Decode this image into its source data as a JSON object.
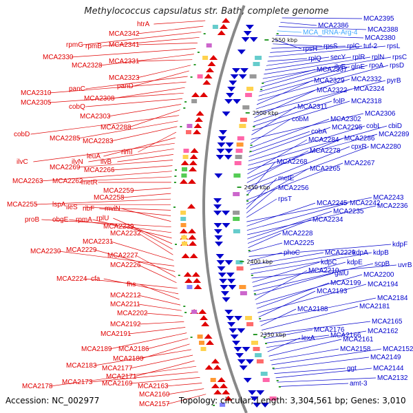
{
  "title": "Methylococcus capsulatus str. Bath, complete genome",
  "footer": {
    "accession": "Accession: NC_002977",
    "summary": "Topology: circular; Length: 3,304,561 bp; Genes: 3,010"
  },
  "colors": {
    "forward": "#e00000",
    "reverse": "#0000cc",
    "trna": "#3fa7ff",
    "backbone": "#888888"
  },
  "kbp_marks": [
    "2550 kbp",
    "2500 kbp",
    "2450 kbp",
    "2400 kbp",
    "2350 kbp"
  ],
  "left_labels": [
    "htrA",
    "MCA2342",
    "rpmG",
    "rpmB",
    "MCA2341",
    "MCA2330",
    "MCA2328",
    "MCA2331",
    "MCA2323",
    "panD",
    "panC",
    "MCA2310",
    "MCA2308",
    "MCA2305",
    "cobQ",
    "MCA2303",
    "MCA2288",
    "cobD",
    "MCA2285",
    "MCA2283",
    "rimI",
    "leuA",
    "ilvC",
    "ilvN",
    "ilvB",
    "MCA2269",
    "MCA2266",
    "MCA2263",
    "MCA2262",
    "metR",
    "MCA2259",
    "MCA2258",
    "MCA2255",
    "lspA",
    "ileS",
    "ribF",
    "mviN",
    "proB",
    "obgE",
    "rpmA",
    "rplU",
    "MCA2239",
    "MCA2232",
    "MCA2231",
    "MCA2230",
    "MCA2229",
    "MCA2227",
    "MCA2226",
    "MCA2224",
    "cfa",
    "fhs",
    "MCA2212",
    "MCA2211",
    "MCA2202",
    "MCA2192",
    "MCA2191",
    "MCA2189",
    "MCA2186",
    "MCA2180",
    "MCA2183",
    "MCA2177",
    "MCA2171",
    "MCA2178",
    "MCA2173",
    "MCA2169",
    "MCA2163",
    "MCA2160",
    "MCA2157"
  ],
  "right_labels": [
    "MCA2395",
    "MCA2386",
    "MCA2388",
    "MCA_tRNA-Arg-4",
    "MCA2380",
    "rpsH",
    "rpsS",
    "rplC",
    "tuf-2",
    "rpsL",
    "rplQ",
    "secY",
    "rplR",
    "rplN",
    "rpsC",
    "MCA2337",
    "ilvE",
    "glnE",
    "rpoA",
    "rpsD",
    "MCA2329",
    "MCA2332",
    "pyrB",
    "MCA2322",
    "MCA2324",
    "folP",
    "MCA2318",
    "MCA2311",
    "MCA2306",
    "cobM",
    "MCA2302",
    "cobA",
    "MCA2295",
    "cobL",
    "cbiD",
    "MCA2289",
    "MCA2284",
    "MCA2286",
    "MCA2278",
    "cpxR",
    "MCA2280",
    "MCA2268",
    "MCA2267",
    "MCA2265",
    "metE",
    "MCA2256",
    "rpsT",
    "MCA2243",
    "MCA2245",
    "MCA2242",
    "MCA2236",
    "MCA2235",
    "MCA2234",
    "MCA2228",
    "MCA2225",
    "kdpF",
    "phoC",
    "MCA2220",
    "kdpA",
    "kdpB",
    "uvrB",
    "kdpC",
    "kdpE",
    "scpB",
    "galU",
    "MCA2210",
    "MCA2200",
    "MCA2199",
    "MCA2194",
    "MCA2193",
    "MCA2184",
    "MCA2188",
    "MCA2181",
    "MCA2165",
    "MCA2176",
    "MCA2166",
    "MCA2162",
    "lexA",
    "MCA2161",
    "MCA2158",
    "MCA2152",
    "MCA2149",
    "ggt",
    "MCA2144",
    "MCA2132",
    "amt-3"
  ]
}
